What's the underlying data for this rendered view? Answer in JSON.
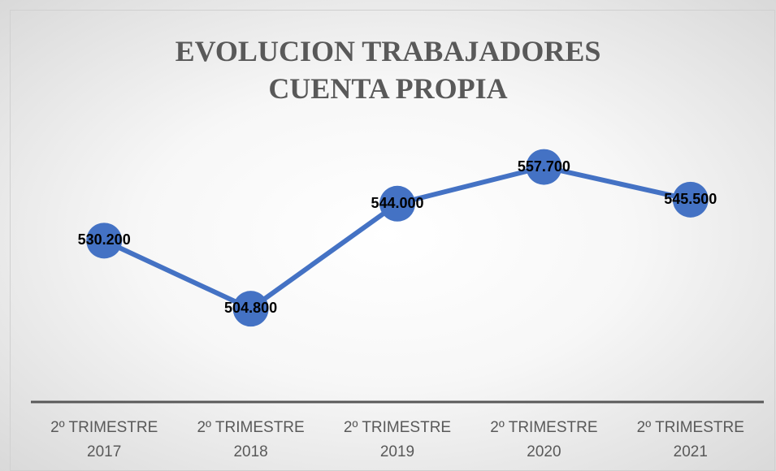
{
  "chart_data": {
    "type": "line",
    "title": "EVOLUCION TRABAJADORES CUENTA PROPIA",
    "categories": [
      "2º TRIMESTRE 2017",
      "2º TRIMESTRE 2018",
      "2º TRIMESTRE 2019",
      "2º TRIMESTRE 2020",
      "2º TRIMESTRE 2021"
    ],
    "series": [
      {
        "color": "#4472c4",
        "values": [
          530200,
          504800,
          544000,
          557700,
          545500
        ],
        "value_labels": [
          "530.200",
          "504.800",
          "544.000",
          "557.700",
          "545.500"
        ]
      }
    ],
    "ylim": [
      470000,
      570000
    ]
  }
}
